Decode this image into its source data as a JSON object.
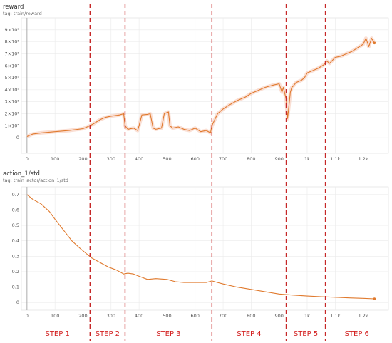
{
  "chart_data": [
    {
      "type": "line",
      "title": "reward",
      "subtitle": "tag: train/reward",
      "xlim": [
        -20,
        1290
      ],
      "ylim": [
        -130000,
        1000000
      ],
      "xticks": [
        0,
        100,
        200,
        300,
        400,
        500,
        600,
        700,
        800,
        900,
        1000,
        1100,
        1200
      ],
      "xtick_labels": [
        "0",
        "100",
        "200",
        "300",
        "400",
        "500",
        "600",
        "700",
        "800",
        "900",
        "1k",
        "1.1k",
        "1.2k"
      ],
      "yticks": [
        0,
        100000,
        200000,
        300000,
        400000,
        500000,
        600000,
        700000,
        800000,
        900000
      ],
      "ytick_labels": [
        "0",
        "1×10⁵",
        "2×10⁵",
        "3×10⁵",
        "4×10⁵",
        "5×10⁵",
        "6×10⁵",
        "7×10⁵",
        "8×10⁵",
        "9×10⁵"
      ],
      "grid": true,
      "color": "#e07a2e",
      "series": [
        {
          "x": [
            0,
            20,
            50,
            100,
            150,
            200,
            225,
            240,
            260,
            280,
            300,
            330,
            345,
            350,
            360,
            380,
            395,
            400,
            410,
            430,
            440,
            450,
            460,
            470,
            480,
            490,
            500,
            505,
            510,
            520,
            540,
            560,
            580,
            600,
            620,
            640,
            655,
            660,
            670,
            680,
            700,
            720,
            750,
            780,
            800,
            820,
            850,
            880,
            900,
            910,
            915,
            925,
            930,
            940,
            945,
            950,
            960,
            970,
            980,
            990,
            1000,
            1020,
            1040,
            1060,
            1070,
            1080,
            1100,
            1120,
            1140,
            1160,
            1180,
            1200,
            1210,
            1220,
            1230,
            1240
          ],
          "y": [
            10000,
            30000,
            40000,
            50000,
            60000,
            75000,
            100000,
            120000,
            150000,
            170000,
            180000,
            190000,
            200000,
            100000,
            70000,
            80000,
            60000,
            100000,
            190000,
            195000,
            200000,
            80000,
            70000,
            75000,
            80000,
            200000,
            210000,
            215000,
            100000,
            80000,
            90000,
            70000,
            60000,
            80000,
            50000,
            60000,
            40000,
            100000,
            150000,
            200000,
            240000,
            270000,
            310000,
            340000,
            370000,
            390000,
            420000,
            440000,
            450000,
            380000,
            420000,
            320000,
            160000,
            380000,
            420000,
            430000,
            460000,
            470000,
            480000,
            500000,
            540000,
            560000,
            580000,
            610000,
            640000,
            620000,
            670000,
            680000,
            700000,
            720000,
            750000,
            780000,
            830000,
            760000,
            830000,
            790000
          ]
        }
      ]
    },
    {
      "type": "line",
      "title": "action_1/std",
      "subtitle": "tag: train_actor/action_1/std",
      "xlim": [
        -20,
        1290
      ],
      "ylim": [
        -0.05,
        0.75
      ],
      "xticks": [
        0,
        100,
        200,
        300,
        400,
        500,
        600,
        700,
        800,
        900,
        1000,
        1100,
        1200
      ],
      "xtick_labels": [
        "0",
        "100",
        "200",
        "300",
        "400",
        "500",
        "600",
        "700",
        "800",
        "900",
        "1k",
        "1.1k",
        "1.2k"
      ],
      "yticks": [
        0,
        0.1,
        0.2,
        0.3,
        0.4,
        0.5,
        0.6,
        0.7
      ],
      "ytick_labels": [
        "0",
        "0.1",
        "0.2",
        "0.3",
        "0.4",
        "0.5",
        "0.6",
        "0.7"
      ],
      "grid": true,
      "color": "#e07a2e",
      "series": [
        {
          "x": [
            0,
            20,
            50,
            80,
            100,
            130,
            160,
            190,
            210,
            230,
            260,
            290,
            320,
            345,
            360,
            380,
            400,
            430,
            460,
            500,
            530,
            560,
            600,
            640,
            660,
            680,
            700,
            750,
            800,
            850,
            900,
            950,
            1000,
            1050,
            1100,
            1150,
            1200,
            1240
          ],
          "y": [
            0.7,
            0.67,
            0.64,
            0.59,
            0.54,
            0.47,
            0.4,
            0.35,
            0.32,
            0.29,
            0.26,
            0.23,
            0.21,
            0.185,
            0.19,
            0.185,
            0.17,
            0.15,
            0.155,
            0.15,
            0.135,
            0.13,
            0.13,
            0.13,
            0.14,
            0.13,
            0.12,
            0.1,
            0.085,
            0.07,
            0.055,
            0.048,
            0.042,
            0.038,
            0.034,
            0.03,
            0.027,
            0.024
          ]
        }
      ]
    }
  ],
  "steps": {
    "boundaries": [
      225,
      350,
      660,
      925,
      1065
    ],
    "labels": [
      "STEP 1",
      "STEP 2",
      "STEP 3",
      "STEP 4",
      "STEP 5",
      "STEP 6"
    ],
    "color": "#c62828"
  }
}
